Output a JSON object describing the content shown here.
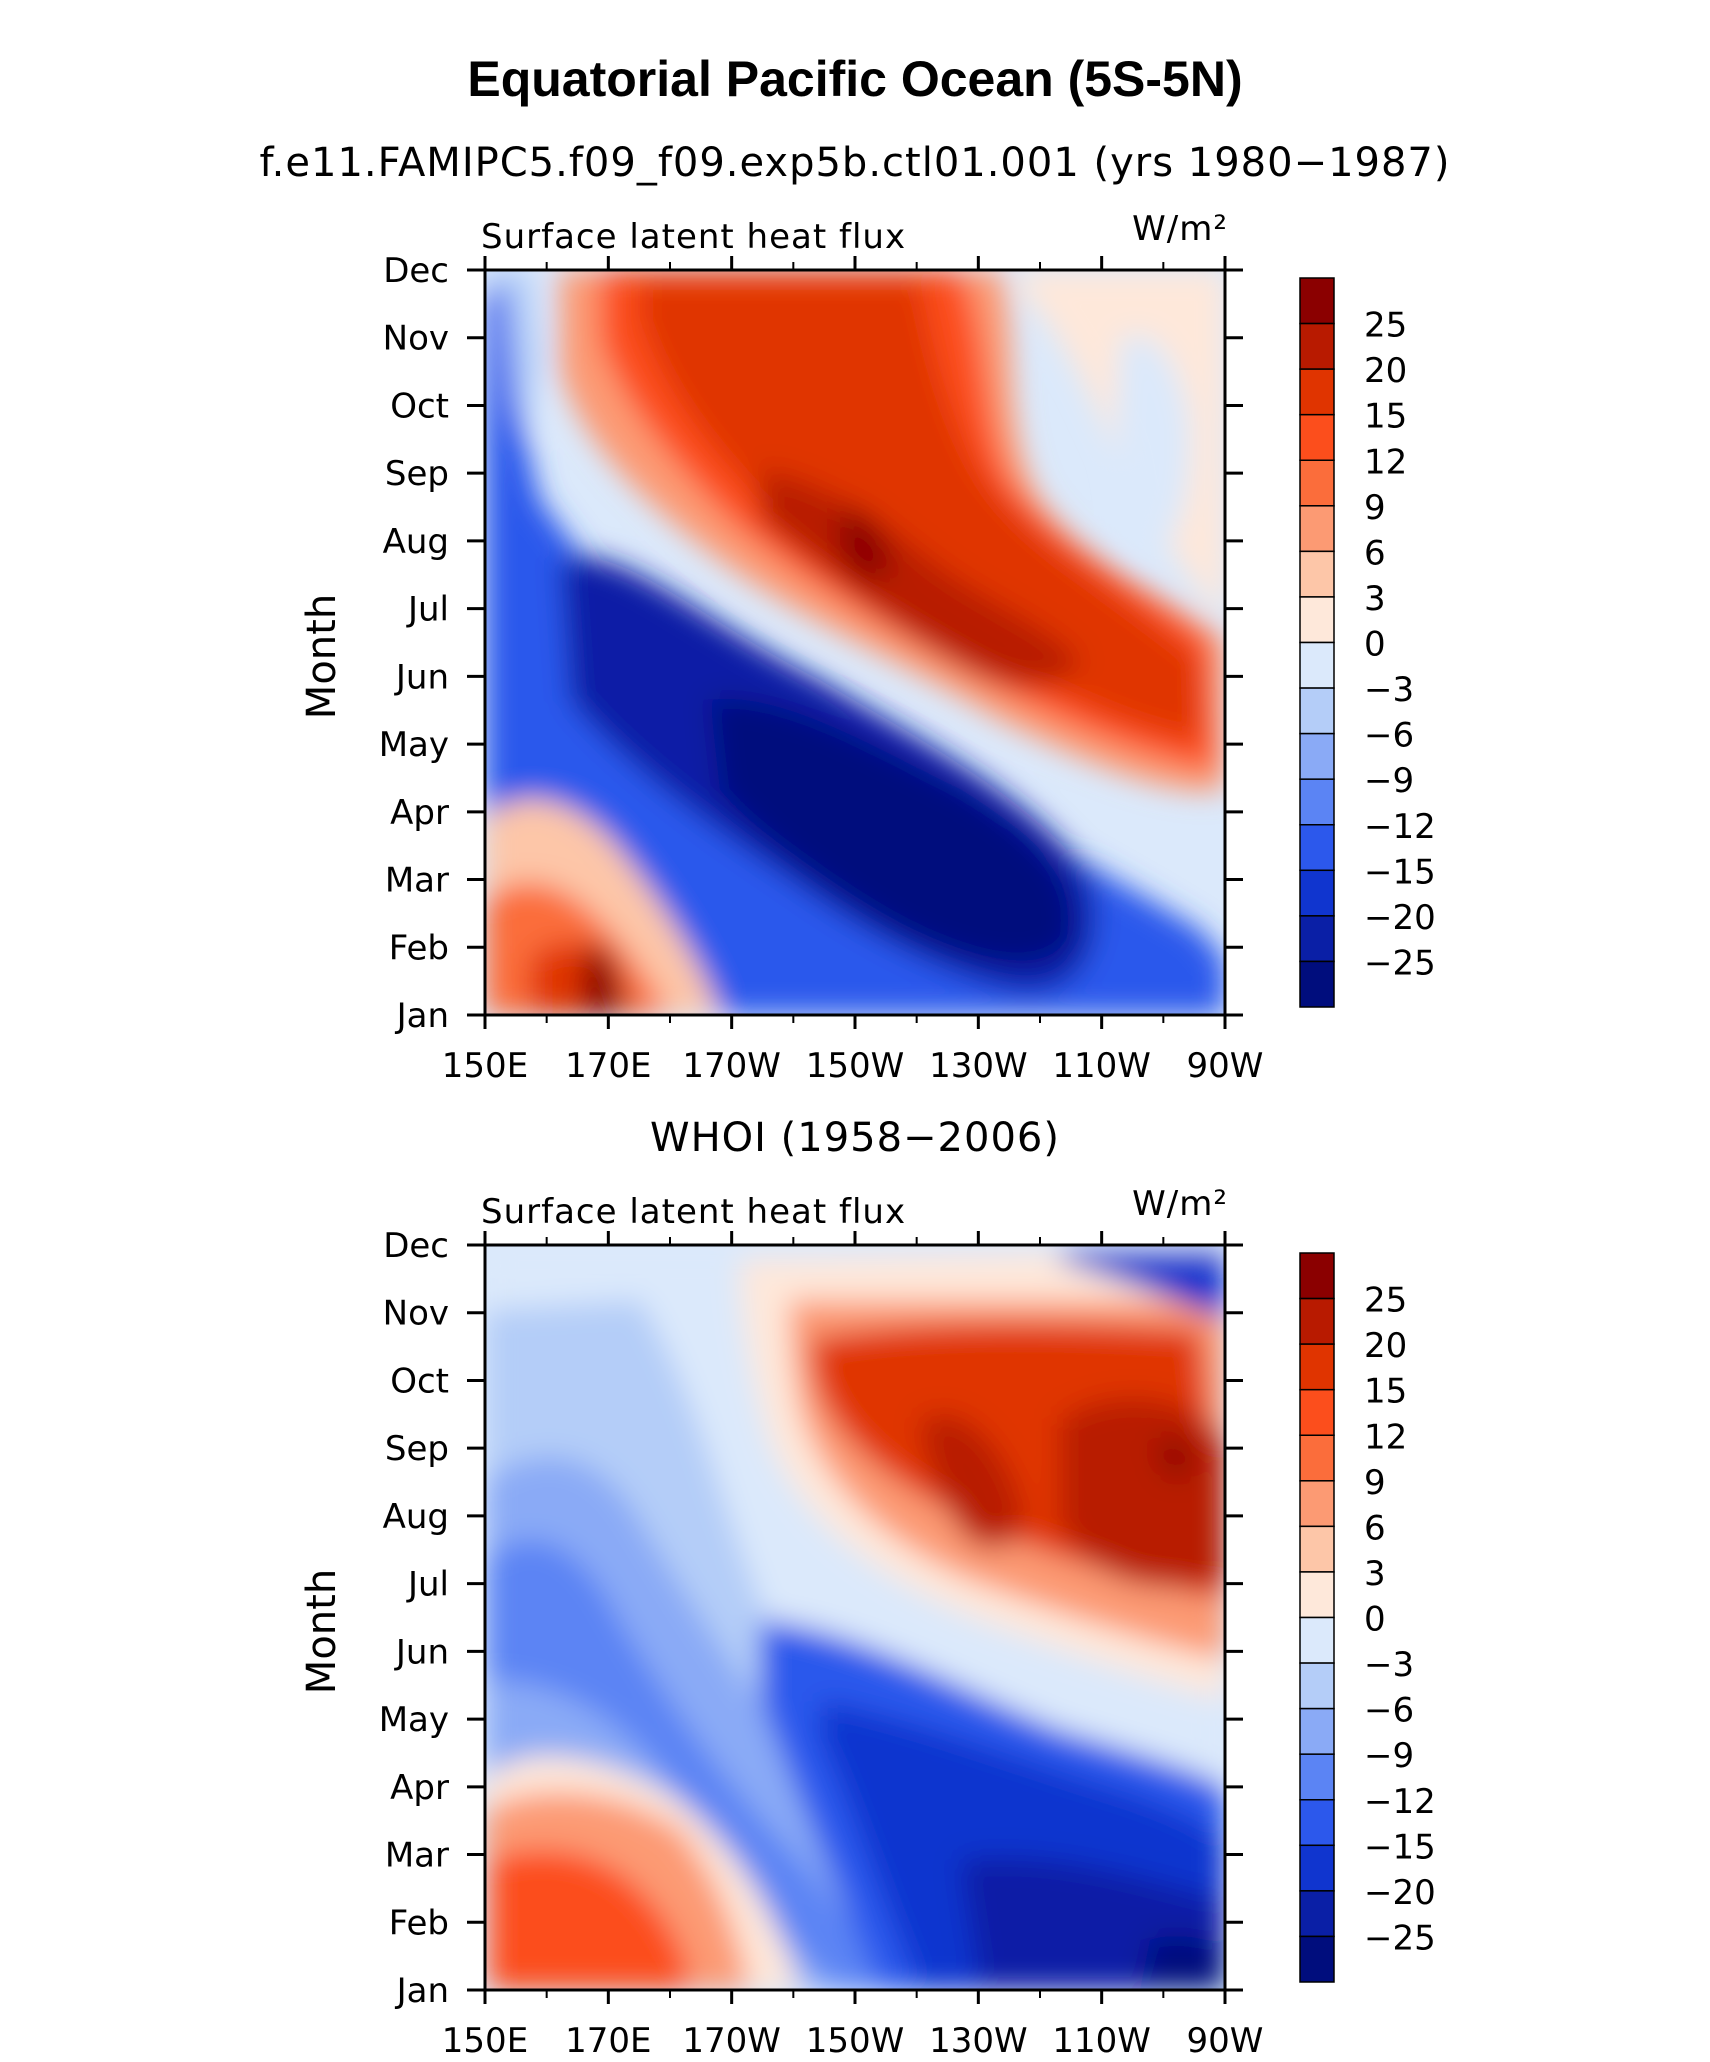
{
  "title": "Equatorial Pacific Ocean (5S-5N)",
  "chart_data": [
    {
      "type": "heatmap",
      "title": "f.e11.FAMIPC5.f09_f09.exp5b.ctl01.001 (yrs 1980−1987)",
      "left_label": "Surface latent heat flux",
      "right_label": "W/m²",
      "ylabel": "Month",
      "x_ticks": [
        "150E",
        "170E",
        "170W",
        "150W",
        "130W",
        "110W",
        "90W"
      ],
      "x_range": [
        150,
        270
      ],
      "y_ticks": [
        "Jan",
        "Feb",
        "Mar",
        "Apr",
        "May",
        "Jun",
        "Jul",
        "Aug",
        "Sep",
        "Oct",
        "Nov",
        "Dec"
      ],
      "colorbar_labels": [
        "25",
        "20",
        "15",
        "12",
        "9",
        "6",
        "3",
        "0",
        "−3",
        "−6",
        "−9",
        "−12",
        "−15",
        "−20",
        "−25"
      ]
    },
    {
      "type": "heatmap",
      "title": "WHOI (1958−2006)",
      "left_label": "Surface latent heat flux",
      "right_label": "W/m²",
      "ylabel": "Month",
      "x_ticks": [
        "150E",
        "170E",
        "170W",
        "150W",
        "130W",
        "110W",
        "90W"
      ],
      "x_range": [
        150,
        270
      ],
      "y_ticks": [
        "Jan",
        "Feb",
        "Mar",
        "Apr",
        "May",
        "Jun",
        "Jul",
        "Aug",
        "Sep",
        "Oct",
        "Nov",
        "Dec"
      ],
      "colorbar_labels": [
        "25",
        "20",
        "15",
        "12",
        "9",
        "6",
        "3",
        "0",
        "−3",
        "−6",
        "−9",
        "−12",
        "−15",
        "−20",
        "−25"
      ]
    }
  ],
  "colors": {
    "levels": [
      "#8b0000",
      "#b81a00",
      "#e03400",
      "#fc4e1c",
      "#fb6d3b",
      "#fc9a73",
      "#fdc6a8",
      "#fee8da",
      "#dbe9fb",
      "#b4cdf8",
      "#8aaaf6",
      "#5b84f4",
      "#2c58ec",
      "#1035cf",
      "#0a1fa6",
      "#000d7d"
    ]
  }
}
